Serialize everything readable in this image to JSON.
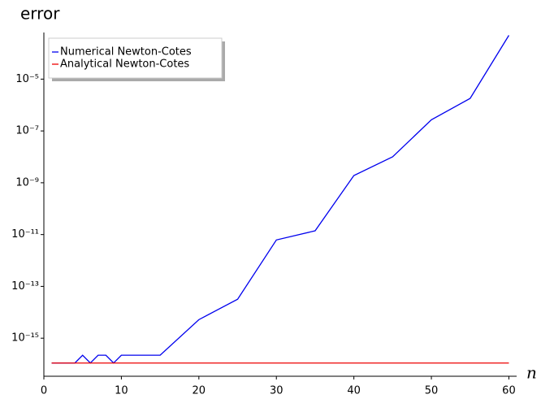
{
  "chart_data": {
    "type": "line",
    "ylabel": "error",
    "xlabel": "n",
    "x": [
      1,
      2,
      3,
      4,
      5,
      6,
      7,
      8,
      9,
      10,
      15,
      20,
      25,
      30,
      35,
      40,
      45,
      50,
      55,
      60
    ],
    "series": [
      {
        "name": "Numerical Newton-Cotes",
        "color": "#0000ee",
        "values": [
          1.1e-16,
          1.1e-16,
          1.1e-16,
          1.1e-16,
          2.2e-16,
          1.1e-16,
          2.2e-16,
          2.2e-16,
          1.1e-16,
          2.2e-16,
          2.2e-16,
          5.2e-15,
          3.2e-14,
          6.2e-12,
          1.4e-11,
          1.9e-09,
          1e-08,
          2.7e-07,
          1.8e-06,
          0.00049
        ]
      },
      {
        "name": "Analytical Newton-Cotes",
        "color": "#ee0000",
        "values": [
          1.1e-16,
          1.1e-16,
          1.1e-16,
          1.1e-16,
          1.1e-16,
          1.1e-16,
          1.1e-16,
          1.1e-16,
          1.1e-16,
          1.1e-16,
          1.1e-16,
          1.1e-16,
          1.1e-16,
          1.1e-16,
          1.1e-16,
          1.1e-16,
          1.1e-16,
          1.1e-16,
          1.1e-16,
          1.1e-16
        ]
      }
    ],
    "xlim": [
      0,
      61
    ],
    "xticks": [
      0,
      10,
      20,
      30,
      40,
      50,
      60
    ],
    "ylim": [
      3.4e-17,
      0.00063
    ],
    "log_y": true,
    "yticks": [
      {
        "value": 1e-15,
        "label": "10⁻¹⁵"
      },
      {
        "value": 1e-13,
        "label": "10⁻¹³"
      },
      {
        "value": 1e-11,
        "label": "10⁻¹¹"
      },
      {
        "value": 1e-09,
        "label": "10⁻⁹"
      },
      {
        "value": 1e-07,
        "label": "10⁻⁷"
      },
      {
        "value": 1e-05,
        "label": "10⁻⁵"
      }
    ],
    "grid": false,
    "legend": "upper left"
  }
}
